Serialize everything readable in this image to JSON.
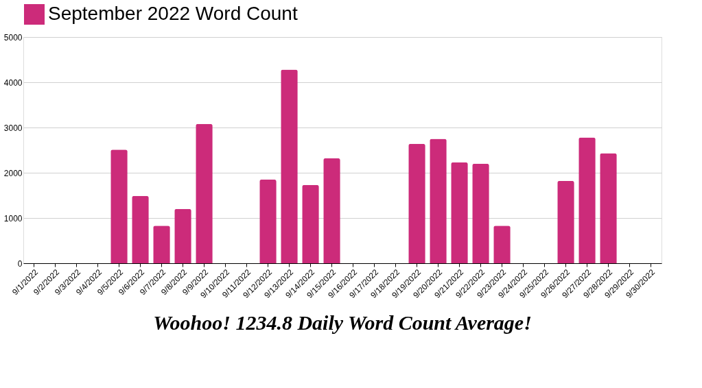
{
  "chart_data": {
    "type": "bar",
    "categories": [
      "9/1/2022",
      "9/2/2022",
      "9/3/2022",
      "9/4/2022",
      "9/5/2022",
      "9/6/2022",
      "9/7/2022",
      "9/8/2022",
      "9/9/2022",
      "9/10/2022",
      "9/11/2022",
      "9/12/2022",
      "9/13/2022",
      "9/14/2022",
      "9/15/2022",
      "9/16/2022",
      "9/17/2022",
      "9/18/2022",
      "9/19/2022",
      "9/20/2022",
      "9/21/2022",
      "9/22/2022",
      "9/23/2022",
      "9/24/2022",
      "9/25/2022",
      "9/26/2022",
      "9/27/2022",
      "9/28/2022",
      "9/29/2022",
      "9/30/2022"
    ],
    "series": [
      {
        "name": "September 2022 Word Count",
        "color": "#cc2b7a",
        "values": [
          0,
          0,
          0,
          0,
          2510,
          1490,
          830,
          1200,
          3080,
          0,
          0,
          1850,
          4280,
          1730,
          2320,
          0,
          0,
          0,
          2640,
          2750,
          2230,
          2200,
          830,
          0,
          0,
          1820,
          2780,
          2430,
          0,
          0
        ]
      }
    ],
    "ylim": [
      0,
      5000
    ],
    "yticks": [
      0,
      1000,
      2000,
      3000,
      4000,
      5000
    ],
    "grid": "y",
    "legend": "top",
    "annotations": [
      "Woohoo! 1234.8 Daily Word Count Average!"
    ]
  }
}
